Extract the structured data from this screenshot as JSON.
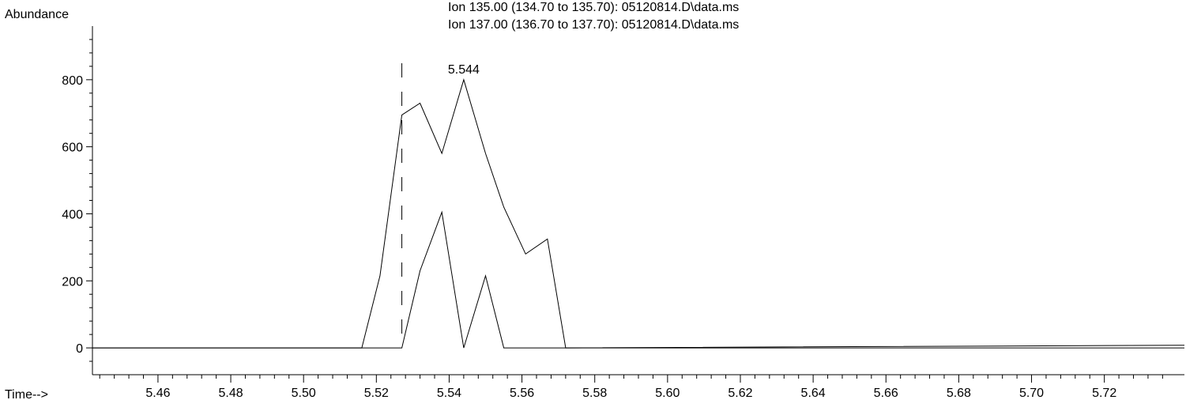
{
  "chart_data": {
    "type": "line",
    "title_lines": [
      "Ion 135.00 (134.70 to 135.70): 05120814.D\\data.ms",
      "Ion 137.00 (136.70 to 137.70): 05120814.D\\data.ms"
    ],
    "ylabel": "Abundance",
    "xlabel": "Time-->",
    "xlim": [
      5.442,
      5.742
    ],
    "ylim": [
      -80,
      960
    ],
    "x_ticks": [
      5.46,
      5.48,
      5.5,
      5.52,
      5.54,
      5.56,
      5.58,
      5.6,
      5.62,
      5.64,
      5.66,
      5.68,
      5.7,
      5.72
    ],
    "x_tick_labels": [
      "5.46",
      "5.48",
      "5.50",
      "5.52",
      "5.54",
      "5.56",
      "5.58",
      "5.60",
      "5.62",
      "5.64",
      "5.66",
      "5.68",
      "5.70",
      "5.72"
    ],
    "y_ticks": [
      0,
      200,
      400,
      600,
      800
    ],
    "y_tick_labels": [
      "0",
      "200",
      "400",
      "600",
      "800"
    ],
    "peak_label": {
      "text": "5.544",
      "x": 5.544,
      "y": 800
    },
    "marker_time": 5.527,
    "series": [
      {
        "x": [
          5.442,
          5.516,
          5.521,
          5.527,
          5.532,
          5.538,
          5.544,
          5.55,
          5.555,
          5.561,
          5.567,
          5.572,
          5.742
        ],
        "y": [
          0,
          0,
          215,
          695,
          730,
          580,
          800,
          580,
          420,
          280,
          325,
          0,
          8
        ]
      },
      {
        "x": [
          5.442,
          5.527,
          5.532,
          5.538,
          5.544,
          5.55,
          5.555,
          5.742
        ],
        "y": [
          0,
          0,
          230,
          405,
          0,
          215,
          0,
          0
        ]
      }
    ]
  }
}
